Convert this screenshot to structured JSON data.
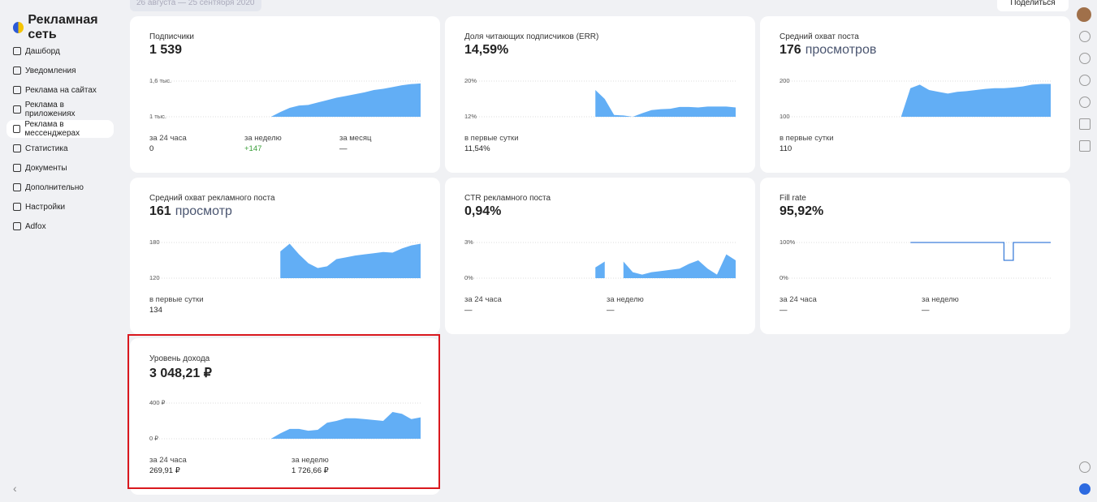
{
  "sidebar": {
    "logo": "Рекламная сеть",
    "menu": [
      "Дашборд",
      "Уведомления",
      "Реклама на сайтах",
      "Реклама в приложениях",
      "Реклама в мессенджерах",
      "Статистика",
      "Документы",
      "Дополнительно",
      "Настройки",
      "Adfox"
    ],
    "active": 4
  },
  "header": {
    "date_range": "26 августа — 25 сентября 2020",
    "share": "Поделиться"
  },
  "cards": [
    {
      "title": "Подписчики",
      "value": "1 539",
      "type": "area",
      "ylim": [
        1000,
        1600
      ],
      "yticks": [
        {
          "value": 1600,
          "label": "1,6 тыс."
        },
        {
          "value": 1000,
          "label": "1 тыс."
        }
      ],
      "values": [
        null,
        null,
        null,
        null,
        null,
        null,
        null,
        null,
        null,
        null,
        null,
        null,
        null,
        1000,
        1080,
        1150,
        1190,
        1200,
        1240,
        1280,
        1320,
        1350,
        1380,
        1410,
        1450,
        1470,
        1500,
        1530,
        1550,
        1560
      ],
      "stats": [
        {
          "label": "за 24 часа",
          "value": "0"
        },
        {
          "label": "за неделю",
          "value": "+147",
          "color": "#3a9f3a"
        },
        {
          "label": "за месяц",
          "value": "—"
        }
      ]
    },
    {
      "title": "Доля читающих подписчиков (ERR)",
      "value": "14,59%",
      "type": "area",
      "ylim": [
        12,
        20
      ],
      "yticks": [
        {
          "value": 20,
          "label": "20%"
        },
        {
          "value": 12,
          "label": "12%"
        }
      ],
      "values": [
        null,
        null,
        null,
        null,
        null,
        null,
        null,
        null,
        null,
        null,
        null,
        null,
        null,
        null,
        18,
        16,
        12.4,
        12.3,
        12,
        12.8,
        13.5,
        13.7,
        13.8,
        14.2,
        14.2,
        14.1,
        14.3,
        14.3,
        14.3,
        14.1
      ],
      "stats": [
        {
          "label": "в первые сутки",
          "value": "11,54%"
        }
      ]
    },
    {
      "title": "Средний охват поста",
      "value": "176",
      "unit": "просмотров",
      "type": "area",
      "ylim": [
        100,
        200
      ],
      "yticks": [
        200,
        100
      ],
      "values": [
        null,
        null,
        null,
        null,
        null,
        null,
        null,
        null,
        null,
        null,
        null,
        null,
        null,
        100,
        180,
        190,
        175,
        170,
        165,
        170,
        172,
        175,
        178,
        180,
        180,
        182,
        185,
        190,
        192,
        192
      ],
      "stats": [
        {
          "label": "в первые сутки",
          "value": "110"
        }
      ]
    },
    {
      "title": "Средний охват рекламного поста",
      "value": "161",
      "unit": "просмотр",
      "type": "area",
      "ylim": [
        120,
        180
      ],
      "yticks": [
        180,
        120
      ],
      "values": [
        null,
        null,
        null,
        null,
        null,
        null,
        null,
        null,
        null,
        null,
        null,
        null,
        null,
        null,
        165,
        178,
        160,
        145,
        137,
        140,
        152,
        155,
        158,
        160,
        162,
        164,
        163,
        170,
        175,
        178
      ],
      "stats": [
        {
          "label": "в первые сутки",
          "value": "134"
        }
      ]
    },
    {
      "title": "CTR рекламного поста",
      "value": "0,94%",
      "type": "area",
      "ylim": [
        0,
        3
      ],
      "yticks": [
        {
          "value": 3,
          "label": "3%"
        },
        {
          "value": 0,
          "label": "0%"
        }
      ],
      "values": [
        null,
        null,
        null,
        null,
        null,
        null,
        null,
        null,
        null,
        null,
        null,
        null,
        null,
        null,
        0.9,
        1.4,
        null,
        1.4,
        0.5,
        0.3,
        0.5,
        0.6,
        0.7,
        0.8,
        1.2,
        1.5,
        0.8,
        0.3,
        2.0,
        1.5
      ],
      "stats": [
        {
          "label": "за 24 часа",
          "value": "—"
        },
        {
          "label": "за неделю",
          "value": "—"
        }
      ]
    },
    {
      "title": "Fill rate",
      "value": "95,92%",
      "type": "line",
      "ylim": [
        0,
        100
      ],
      "yticks": [
        {
          "value": 100,
          "label": "100%"
        },
        {
          "value": 0,
          "label": "0%"
        }
      ],
      "values": [
        null,
        null,
        null,
        null,
        null,
        null,
        null,
        null,
        null,
        null,
        null,
        null,
        null,
        null,
        100,
        100,
        100,
        100,
        100,
        100,
        100,
        100,
        100,
        100,
        50,
        100,
        100,
        100,
        100,
        100
      ],
      "stats": [
        {
          "label": "за 24 часа",
          "value": "—"
        },
        {
          "label": "за неделю",
          "value": "—"
        }
      ]
    },
    {
      "title": "Уровень дохода",
      "value": "3 048,21 ₽",
      "type": "area",
      "ylim": [
        0,
        400
      ],
      "yticks": [
        {
          "value": 400,
          "label": "400 ₽"
        },
        {
          "value": 0,
          "label": "0 ₽"
        }
      ],
      "values": [
        null,
        null,
        null,
        null,
        null,
        null,
        null,
        null,
        null,
        null,
        null,
        null,
        null,
        0,
        60,
        110,
        110,
        90,
        100,
        180,
        200,
        230,
        230,
        220,
        210,
        200,
        300,
        280,
        220,
        240
      ],
      "stats": [
        {
          "label": "за 24 часа",
          "value": "269,91 ₽"
        },
        {
          "label": "за неделю",
          "value": "1 726,66 ₽"
        }
      ]
    }
  ]
}
